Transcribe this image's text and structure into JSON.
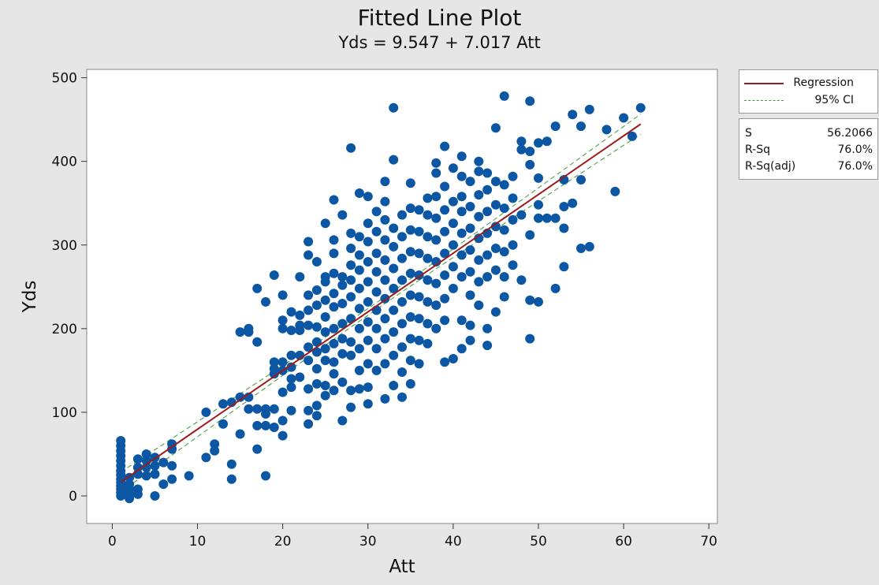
{
  "chart_data": {
    "type": "scatter",
    "title": "Fitted Line Plot",
    "subtitle": "Yds = 9.547 + 7.017 Att",
    "xlabel": "Att",
    "ylabel": "Yds",
    "xlim": [
      -3,
      71
    ],
    "ylim": [
      -33,
      510
    ],
    "xticks": [
      "0",
      "10",
      "20",
      "30",
      "40",
      "50",
      "60",
      "70"
    ],
    "yticks": [
      "0",
      "100",
      "200",
      "300",
      "400",
      "500"
    ],
    "grid": false,
    "legend_position": "right",
    "colors": {
      "points": "#0b57a4",
      "regression": "#9b1c1c",
      "ci": "#3a9a3a",
      "plot_bg": "#ffffff",
      "frame_bg": "#e6e6e6"
    },
    "regression": {
      "intercept": 9.547,
      "slope": 7.017,
      "x_range": [
        1,
        62
      ]
    },
    "ci_band": {
      "lower_at_x_max": 432,
      "upper_at_x_max": 456,
      "width_at_mean": 8
    },
    "legend": [
      {
        "label": "Regression",
        "style": "solid"
      },
      {
        "label": "95% CI",
        "style": "dashed"
      }
    ],
    "stats": [
      {
        "label": "S",
        "value": "56.2066"
      },
      {
        "label": "R-Sq",
        "value": "76.0%"
      },
      {
        "label": "R-Sq(adj)",
        "value": "76.0%"
      }
    ],
    "points": [
      [
        1,
        0
      ],
      [
        1,
        4
      ],
      [
        1,
        8
      ],
      [
        1,
        12
      ],
      [
        1,
        16
      ],
      [
        1,
        20
      ],
      [
        1,
        25
      ],
      [
        1,
        30
      ],
      [
        1,
        36
      ],
      [
        1,
        42
      ],
      [
        1,
        48
      ],
      [
        1,
        54
      ],
      [
        1,
        60
      ],
      [
        1,
        66
      ],
      [
        2,
        -3
      ],
      [
        2,
        2
      ],
      [
        2,
        8
      ],
      [
        2,
        14
      ],
      [
        2,
        22
      ],
      [
        3,
        2
      ],
      [
        3,
        8
      ],
      [
        3,
        26
      ],
      [
        3,
        34
      ],
      [
        3,
        44
      ],
      [
        4,
        24
      ],
      [
        4,
        34
      ],
      [
        4,
        42
      ],
      [
        4,
        50
      ],
      [
        5,
        0
      ],
      [
        5,
        26
      ],
      [
        5,
        36
      ],
      [
        5,
        46
      ],
      [
        6,
        14
      ],
      [
        6,
        40
      ],
      [
        7,
        20
      ],
      [
        7,
        36
      ],
      [
        7,
        56
      ],
      [
        7,
        62
      ],
      [
        9,
        24
      ],
      [
        11,
        46
      ],
      [
        11,
        100
      ],
      [
        12,
        54
      ],
      [
        12,
        62
      ],
      [
        13,
        86
      ],
      [
        13,
        110
      ],
      [
        14,
        20
      ],
      [
        14,
        38
      ],
      [
        14,
        112
      ],
      [
        15,
        74
      ],
      [
        15,
        118
      ],
      [
        15,
        196
      ],
      [
        16,
        104
      ],
      [
        16,
        118
      ],
      [
        16,
        196
      ],
      [
        16,
        200
      ],
      [
        17,
        56
      ],
      [
        17,
        84
      ],
      [
        17,
        104
      ],
      [
        17,
        184
      ],
      [
        17,
        248
      ],
      [
        18,
        24
      ],
      [
        18,
        84
      ],
      [
        18,
        98
      ],
      [
        18,
        104
      ],
      [
        18,
        232
      ],
      [
        19,
        82
      ],
      [
        19,
        104
      ],
      [
        19,
        146
      ],
      [
        19,
        152
      ],
      [
        19,
        160
      ],
      [
        19,
        264
      ],
      [
        20,
        72
      ],
      [
        20,
        90
      ],
      [
        20,
        124
      ],
      [
        20,
        150
      ],
      [
        20,
        160
      ],
      [
        20,
        200
      ],
      [
        20,
        210
      ],
      [
        20,
        240
      ],
      [
        21,
        102
      ],
      [
        21,
        130
      ],
      [
        21,
        140
      ],
      [
        21,
        154
      ],
      [
        21,
        168
      ],
      [
        21,
        198
      ],
      [
        21,
        220
      ],
      [
        22,
        142
      ],
      [
        22,
        168
      ],
      [
        22,
        198
      ],
      [
        22,
        204
      ],
      [
        22,
        216
      ],
      [
        22,
        262
      ],
      [
        23,
        86
      ],
      [
        23,
        102
      ],
      [
        23,
        128
      ],
      [
        23,
        162
      ],
      [
        23,
        178
      ],
      [
        23,
        204
      ],
      [
        23,
        222
      ],
      [
        23,
        240
      ],
      [
        23,
        288
      ],
      [
        23,
        304
      ],
      [
        24,
        96
      ],
      [
        24,
        108
      ],
      [
        24,
        134
      ],
      [
        24,
        152
      ],
      [
        24,
        172
      ],
      [
        24,
        184
      ],
      [
        24,
        202
      ],
      [
        24,
        228
      ],
      [
        24,
        246
      ],
      [
        24,
        280
      ],
      [
        25,
        120
      ],
      [
        25,
        132
      ],
      [
        25,
        162
      ],
      [
        25,
        176
      ],
      [
        25,
        196
      ],
      [
        25,
        214
      ],
      [
        25,
        234
      ],
      [
        25,
        256
      ],
      [
        25,
        262
      ],
      [
        25,
        326
      ],
      [
        26,
        126
      ],
      [
        26,
        146
      ],
      [
        26,
        160
      ],
      [
        26,
        182
      ],
      [
        26,
        200
      ],
      [
        26,
        226
      ],
      [
        26,
        242
      ],
      [
        26,
        266
      ],
      [
        26,
        290
      ],
      [
        26,
        306
      ],
      [
        26,
        354
      ],
      [
        27,
        90
      ],
      [
        27,
        136
      ],
      [
        27,
        170
      ],
      [
        27,
        188
      ],
      [
        27,
        206
      ],
      [
        27,
        230
      ],
      [
        27,
        252
      ],
      [
        27,
        262
      ],
      [
        27,
        336
      ],
      [
        28,
        106
      ],
      [
        28,
        126
      ],
      [
        28,
        168
      ],
      [
        28,
        184
      ],
      [
        28,
        212
      ],
      [
        28,
        238
      ],
      [
        28,
        258
      ],
      [
        28,
        276
      ],
      [
        28,
        296
      ],
      [
        28,
        314
      ],
      [
        28,
        416
      ],
      [
        29,
        128
      ],
      [
        29,
        150
      ],
      [
        29,
        176
      ],
      [
        29,
        200
      ],
      [
        29,
        224
      ],
      [
        29,
        248
      ],
      [
        29,
        270
      ],
      [
        29,
        288
      ],
      [
        29,
        310
      ],
      [
        29,
        362
      ],
      [
        30,
        110
      ],
      [
        30,
        130
      ],
      [
        30,
        158
      ],
      [
        30,
        186
      ],
      [
        30,
        208
      ],
      [
        30,
        232
      ],
      [
        30,
        256
      ],
      [
        30,
        280
      ],
      [
        30,
        304
      ],
      [
        30,
        326
      ],
      [
        30,
        358
      ],
      [
        31,
        150
      ],
      [
        31,
        176
      ],
      [
        31,
        200
      ],
      [
        31,
        222
      ],
      [
        31,
        244
      ],
      [
        31,
        268
      ],
      [
        31,
        290
      ],
      [
        31,
        316
      ],
      [
        31,
        340
      ],
      [
        32,
        116
      ],
      [
        32,
        158
      ],
      [
        32,
        188
      ],
      [
        32,
        212
      ],
      [
        32,
        236
      ],
      [
        32,
        258
      ],
      [
        32,
        282
      ],
      [
        32,
        306
      ],
      [
        32,
        330
      ],
      [
        32,
        352
      ],
      [
        32,
        376
      ],
      [
        33,
        132
      ],
      [
        33,
        168
      ],
      [
        33,
        196
      ],
      [
        33,
        222
      ],
      [
        33,
        248
      ],
      [
        33,
        272
      ],
      [
        33,
        298
      ],
      [
        33,
        320
      ],
      [
        33,
        402
      ],
      [
        33,
        464
      ],
      [
        34,
        118
      ],
      [
        34,
        148
      ],
      [
        34,
        178
      ],
      [
        34,
        206
      ],
      [
        34,
        232
      ],
      [
        34,
        258
      ],
      [
        34,
        284
      ],
      [
        34,
        310
      ],
      [
        34,
        336
      ],
      [
        35,
        134
      ],
      [
        35,
        162
      ],
      [
        35,
        188
      ],
      [
        35,
        214
      ],
      [
        35,
        240
      ],
      [
        35,
        266
      ],
      [
        35,
        292
      ],
      [
        35,
        318
      ],
      [
        35,
        344
      ],
      [
        35,
        374
      ],
      [
        36,
        158
      ],
      [
        36,
        186
      ],
      [
        36,
        212
      ],
      [
        36,
        238
      ],
      [
        36,
        264
      ],
      [
        36,
        290
      ],
      [
        36,
        316
      ],
      [
        36,
        342
      ],
      [
        37,
        182
      ],
      [
        37,
        206
      ],
      [
        37,
        232
      ],
      [
        37,
        258
      ],
      [
        37,
        284
      ],
      [
        37,
        310
      ],
      [
        37,
        336
      ],
      [
        37,
        356
      ],
      [
        38,
        200
      ],
      [
        38,
        228
      ],
      [
        38,
        254
      ],
      [
        38,
        280
      ],
      [
        38,
        306
      ],
      [
        38,
        332
      ],
      [
        38,
        358
      ],
      [
        38,
        386
      ],
      [
        38,
        398
      ],
      [
        39,
        160
      ],
      [
        39,
        210
      ],
      [
        39,
        236
      ],
      [
        39,
        264
      ],
      [
        39,
        290
      ],
      [
        39,
        316
      ],
      [
        39,
        342
      ],
      [
        39,
        370
      ],
      [
        39,
        418
      ],
      [
        40,
        164
      ],
      [
        40,
        248
      ],
      [
        40,
        274
      ],
      [
        40,
        300
      ],
      [
        40,
        326
      ],
      [
        40,
        352
      ],
      [
        40,
        392
      ],
      [
        41,
        176
      ],
      [
        41,
        210
      ],
      [
        41,
        262
      ],
      [
        41,
        288
      ],
      [
        41,
        314
      ],
      [
        41,
        340
      ],
      [
        41,
        358
      ],
      [
        41,
        382
      ],
      [
        41,
        406
      ],
      [
        42,
        186
      ],
      [
        42,
        204
      ],
      [
        42,
        240
      ],
      [
        42,
        268
      ],
      [
        42,
        294
      ],
      [
        42,
        320
      ],
      [
        42,
        346
      ],
      [
        42,
        376
      ],
      [
        43,
        228
      ],
      [
        43,
        256
      ],
      [
        43,
        282
      ],
      [
        43,
        308
      ],
      [
        43,
        334
      ],
      [
        43,
        360
      ],
      [
        43,
        388
      ],
      [
        43,
        400
      ],
      [
        44,
        180
      ],
      [
        44,
        200
      ],
      [
        44,
        262
      ],
      [
        44,
        288
      ],
      [
        44,
        314
      ],
      [
        44,
        340
      ],
      [
        44,
        366
      ],
      [
        44,
        386
      ],
      [
        45,
        220
      ],
      [
        45,
        270
      ],
      [
        45,
        296
      ],
      [
        45,
        322
      ],
      [
        45,
        348
      ],
      [
        45,
        376
      ],
      [
        45,
        440
      ],
      [
        46,
        238
      ],
      [
        46,
        262
      ],
      [
        46,
        292
      ],
      [
        46,
        318
      ],
      [
        46,
        344
      ],
      [
        46,
        372
      ],
      [
        46,
        478
      ],
      [
        47,
        276
      ],
      [
        47,
        300
      ],
      [
        47,
        330
      ],
      [
        47,
        356
      ],
      [
        47,
        382
      ],
      [
        48,
        258
      ],
      [
        48,
        336
      ],
      [
        48,
        414
      ],
      [
        48,
        424
      ],
      [
        49,
        188
      ],
      [
        49,
        234
      ],
      [
        49,
        312
      ],
      [
        49,
        396
      ],
      [
        49,
        412
      ],
      [
        49,
        472
      ],
      [
        50,
        232
      ],
      [
        50,
        332
      ],
      [
        50,
        348
      ],
      [
        50,
        380
      ],
      [
        50,
        422
      ],
      [
        51,
        332
      ],
      [
        51,
        424
      ],
      [
        52,
        248
      ],
      [
        52,
        332
      ],
      [
        52,
        442
      ],
      [
        53,
        274
      ],
      [
        53,
        320
      ],
      [
        53,
        346
      ],
      [
        53,
        378
      ],
      [
        54,
        350
      ],
      [
        54,
        456
      ],
      [
        55,
        296
      ],
      [
        55,
        378
      ],
      [
        55,
        442
      ],
      [
        56,
        298
      ],
      [
        56,
        462
      ],
      [
        58,
        438
      ],
      [
        59,
        364
      ],
      [
        60,
        452
      ],
      [
        61,
        430
      ],
      [
        62,
        464
      ]
    ]
  }
}
